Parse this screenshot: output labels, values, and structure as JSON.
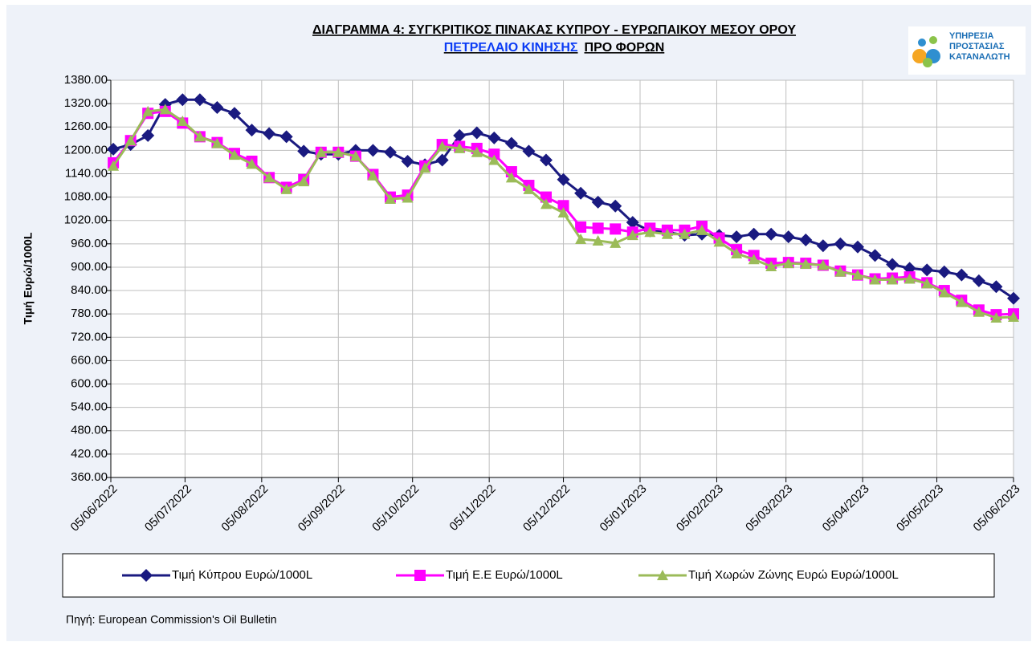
{
  "chart_data": {
    "type": "line",
    "title": "ΔΙΑΓΡΑΜΜΑ 4: ΣΥΓΚΡΙΤΙΚΟΣ ΠΙΝΑΚΑΣ ΚΥΠΡΟΥ - ΕΥΡΩΠΑΙΚΟΥ ΜΕΣΟΥ ΟΡΟΥ",
    "subtitle": [
      "ΠΕΤΡΕΛΑΙΟ ΚΙΝΗΣΗΣ",
      "ΠΡΟ  ΦΟΡΩΝ"
    ],
    "ylabel": "Τιμή Ευρώ/1000L",
    "source": "Πηγή: European Commission's Oil Bulletin",
    "logo": [
      "ΥΠΗΡΕΣΙΑ",
      "ΠΡΟΣΤΑΣΙΑΣ",
      "ΚΑΤΑΝΑΛΩΤΗ"
    ],
    "x": [
      "06/06/2022",
      "13/06/2022",
      "20/06/2022",
      "27/06/2022",
      "04/07/2022",
      "11/07/2022",
      "18/07/2022",
      "25/07/2022",
      "01/08/2022",
      "08/08/2022",
      "15/08/2022",
      "22/08/2022",
      "29/08/2022",
      "05/09/2022",
      "12/09/2022",
      "19/09/2022",
      "26/09/2022",
      "03/10/2022",
      "10/10/2022",
      "17/10/2022",
      "24/10/2022",
      "31/10/2022",
      "07/11/2022",
      "14/11/2022",
      "21/11/2022",
      "28/11/2022",
      "05/12/2022",
      "12/12/2022",
      "19/12/2022",
      "26/12/2022",
      "02/01/2023",
      "09/01/2023",
      "16/01/2023",
      "23/01/2023",
      "30/01/2023",
      "06/02/2023",
      "13/02/2023",
      "20/02/2023",
      "27/02/2023",
      "06/03/2023",
      "13/03/2023",
      "20/03/2023",
      "27/03/2023",
      "03/04/2023",
      "10/04/2023",
      "17/04/2023",
      "24/04/2023",
      "01/05/2023",
      "08/05/2023",
      "15/05/2023",
      "22/05/2023",
      "29/05/2023",
      "05/06/2023"
    ],
    "series": [
      {
        "name": "Τιμή Κύπρου Ευρώ/1000L",
        "color": "#1a1a80",
        "marker": "diamond",
        "values": [
          1203,
          1215,
          1238,
          1318,
          1330,
          1330,
          1310,
          1295,
          1252,
          1243,
          1235,
          1198,
          1190,
          1190,
          1200,
          1200,
          1195,
          1172,
          1163,
          1175,
          1238,
          1245,
          1232,
          1218,
          1198,
          1175,
          1125,
          1090,
          1067,
          1057,
          1015,
          993,
          990,
          982,
          985,
          982,
          978,
          985,
          985,
          978,
          970,
          955,
          960,
          952,
          930,
          907,
          897,
          893,
          888,
          880,
          865,
          850,
          820
        ]
      },
      {
        "name": "Τιμή Ε.Ε Ευρώ/1000L",
        "color": "#ff00ff",
        "marker": "square",
        "values": [
          1168,
          1225,
          1295,
          1300,
          1270,
          1235,
          1220,
          1192,
          1172,
          1130,
          1105,
          1125,
          1195,
          1195,
          1185,
          1138,
          1080,
          1085,
          1160,
          1215,
          1210,
          1205,
          1190,
          1145,
          1110,
          1080,
          1058,
          1003,
          1000,
          998,
          990,
          1000,
          995,
          995,
          1005,
          975,
          945,
          930,
          910,
          912,
          910,
          905,
          890,
          880,
          870,
          872,
          875,
          860,
          840,
          815,
          790,
          778,
          780
        ]
      },
      {
        "name": "Τιμή Χωρών Ζώνης Ευρώ Ευρώ/1000L",
        "color": "#9bbb59",
        "marker": "triangle",
        "values": [
          1160,
          1225,
          1300,
          1305,
          1275,
          1235,
          1218,
          1188,
          1165,
          1130,
          1100,
          1120,
          1195,
          1195,
          1185,
          1135,
          1075,
          1078,
          1155,
          1210,
          1205,
          1195,
          1175,
          1130,
          1100,
          1062,
          1040,
          972,
          968,
          962,
          982,
          990,
          985,
          985,
          995,
          965,
          935,
          920,
          902,
          910,
          908,
          905,
          888,
          880,
          868,
          868,
          870,
          858,
          835,
          810,
          785,
          770,
          772
        ]
      }
    ],
    "xlim": [
      "05/06/2022",
      "05/06/2023"
    ],
    "xticks": [
      "05/06/2022",
      "05/07/2022",
      "05/08/2022",
      "05/09/2022",
      "05/10/2022",
      "05/11/2022",
      "05/12/2022",
      "05/01/2023",
      "05/02/2023",
      "05/03/2023",
      "05/04/2023",
      "05/05/2023",
      "05/06/2023"
    ],
    "ylim": [
      360,
      1380
    ],
    "yticks": [
      {
        "value": 360,
        "label": "360.00"
      },
      {
        "value": 420,
        "label": "420.00"
      },
      {
        "value": 480,
        "label": "480.00"
      },
      {
        "value": 540,
        "label": "540.00"
      },
      {
        "value": 600,
        "label": "600.00"
      },
      {
        "value": 660,
        "label": "660.00"
      },
      {
        "value": 720,
        "label": "720.00"
      },
      {
        "value": 780,
        "label": "780.00"
      },
      {
        "value": 840,
        "label": "840.00"
      },
      {
        "value": 900,
        "label": "900.00"
      },
      {
        "value": 960,
        "label": "960.00"
      },
      {
        "value": 1020,
        "label": "1020.00"
      },
      {
        "value": 1080,
        "label": "1080.00"
      },
      {
        "value": 1140,
        "label": "1140.00"
      },
      {
        "value": 1200,
        "label": "1200.00"
      },
      {
        "value": 1260,
        "label": "1260.00"
      },
      {
        "value": 1320,
        "label": "1320.00"
      },
      {
        "value": 1380,
        "label": "1380.00"
      }
    ],
    "grid": true,
    "legend": "bottom"
  }
}
